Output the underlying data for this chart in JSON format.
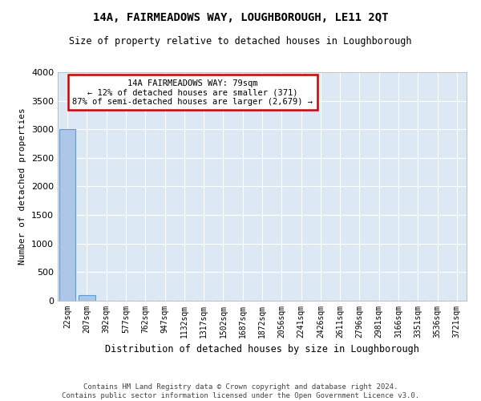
{
  "title": "14A, FAIRMEADOWS WAY, LOUGHBOROUGH, LE11 2QT",
  "subtitle": "Size of property relative to detached houses in Loughborough",
  "xlabel": "Distribution of detached houses by size in Loughborough",
  "ylabel": "Number of detached properties",
  "bar_labels": [
    "22sqm",
    "207sqm",
    "392sqm",
    "577sqm",
    "762sqm",
    "947sqm",
    "1132sqm",
    "1317sqm",
    "1502sqm",
    "1687sqm",
    "1872sqm",
    "2056sqm",
    "2241sqm",
    "2426sqm",
    "2611sqm",
    "2796sqm",
    "2981sqm",
    "3166sqm",
    "3351sqm",
    "3536sqm",
    "3721sqm"
  ],
  "bar_values": [
    2998,
    105,
    2,
    1,
    0,
    0,
    0,
    0,
    0,
    0,
    0,
    0,
    0,
    0,
    0,
    0,
    0,
    0,
    0,
    0,
    0
  ],
  "bar_color": "#aec6e8",
  "bar_edge_color": "#5b9bd5",
  "ylim": [
    0,
    4000
  ],
  "yticks": [
    0,
    500,
    1000,
    1500,
    2000,
    2500,
    3000,
    3500,
    4000
  ],
  "annotation_text": "14A FAIRMEADOWS WAY: 79sqm\n← 12% of detached houses are smaller (371)\n87% of semi-detached houses are larger (2,679) →",
  "annotation_box_color": "#cc0000",
  "bg_color": "#dce9f5",
  "footer_line1": "Contains HM Land Registry data © Crown copyright and database right 2024.",
  "footer_line2": "Contains public sector information licensed under the Open Government Licence v3.0."
}
